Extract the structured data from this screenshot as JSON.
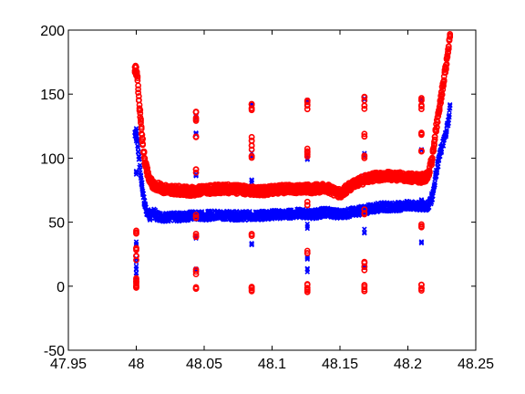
{
  "chart_data": {
    "type": "scatter",
    "title": "",
    "xlabel": "",
    "ylabel": "",
    "xlim": [
      47.95,
      48.25
    ],
    "ylim": [
      -50,
      200
    ],
    "xticks": [
      "47.95",
      "48",
      "48.05",
      "48.1",
      "48.15",
      "48.2",
      "48.25"
    ],
    "yticks": [
      "-50",
      "0",
      "50",
      "100",
      "150",
      "200"
    ],
    "grid": false,
    "legend": "none",
    "series": [
      {
        "color": "#0000ff",
        "marker": "x",
        "curve": [
          [
            47.999,
            120
          ],
          [
            48.0,
            118
          ],
          [
            48.001,
            112
          ],
          [
            48.002,
            100
          ],
          [
            48.004,
            80
          ],
          [
            48.006,
            65
          ],
          [
            48.008,
            58
          ],
          [
            48.01,
            54
          ],
          [
            48.012,
            58
          ],
          [
            48.015,
            55
          ],
          [
            48.02,
            54
          ],
          [
            48.03,
            54
          ],
          [
            48.04,
            55
          ],
          [
            48.05,
            55
          ],
          [
            48.06,
            56
          ],
          [
            48.07,
            55
          ],
          [
            48.08,
            55
          ],
          [
            48.09,
            55
          ],
          [
            48.1,
            56
          ],
          [
            48.11,
            56
          ],
          [
            48.12,
            57
          ],
          [
            48.13,
            56
          ],
          [
            48.14,
            58
          ],
          [
            48.15,
            56
          ],
          [
            48.16,
            58
          ],
          [
            48.17,
            60
          ],
          [
            48.18,
            62
          ],
          [
            48.19,
            62
          ],
          [
            48.2,
            63
          ],
          [
            48.21,
            62
          ],
          [
            48.215,
            63
          ],
          [
            48.218,
            70
          ],
          [
            48.221,
            90
          ],
          [
            48.224,
            105
          ],
          [
            48.227,
            115
          ],
          [
            48.23,
            130
          ],
          [
            48.231,
            140
          ]
        ],
        "columns": [
          {
            "x": 48.0,
            "y": [
              122,
              115,
              88,
              33,
              20,
              15,
              10,
              5
            ]
          },
          {
            "x": 48.044,
            "y": [
              133,
              118,
              88,
              55,
              38,
              12
            ]
          },
          {
            "x": 48.085,
            "y": [
              142,
              103,
              83,
              32
            ]
          },
          {
            "x": 48.126,
            "y": [
              145,
              100,
              47,
              22,
              12
            ]
          },
          {
            "x": 48.168,
            "y": [
              145,
              102,
              85,
              43,
              15
            ]
          },
          {
            "x": 48.21,
            "y": [
              145,
              105,
              68,
              35
            ]
          }
        ]
      },
      {
        "color": "#ff0000",
        "marker": "o",
        "curve": [
          [
            47.999,
            170
          ],
          [
            48.0,
            168
          ],
          [
            48.001,
            160
          ],
          [
            48.002,
            145
          ],
          [
            48.004,
            120
          ],
          [
            48.006,
            100
          ],
          [
            48.008,
            90
          ],
          [
            48.01,
            82
          ],
          [
            48.012,
            80
          ],
          [
            48.015,
            78
          ],
          [
            48.02,
            76
          ],
          [
            48.03,
            75
          ],
          [
            48.04,
            74
          ],
          [
            48.05,
            75
          ],
          [
            48.06,
            76
          ],
          [
            48.07,
            76
          ],
          [
            48.08,
            75
          ],
          [
            48.09,
            74
          ],
          [
            48.1,
            75
          ],
          [
            48.11,
            76
          ],
          [
            48.12,
            76
          ],
          [
            48.13,
            76
          ],
          [
            48.14,
            77
          ],
          [
            48.15,
            72
          ],
          [
            48.16,
            80
          ],
          [
            48.17,
            84
          ],
          [
            48.18,
            86
          ],
          [
            48.19,
            86
          ],
          [
            48.2,
            85
          ],
          [
            48.21,
            84
          ],
          [
            48.215,
            86
          ],
          [
            48.218,
            100
          ],
          [
            48.221,
            125
          ],
          [
            48.224,
            145
          ],
          [
            48.227,
            165
          ],
          [
            48.23,
            185
          ],
          [
            48.231,
            198
          ]
        ],
        "columns": [
          {
            "x": 48.0,
            "y": [
              42,
              28,
              22,
              5,
              2,
              0
            ]
          },
          {
            "x": 48.044,
            "y": [
              135,
              130,
              118,
              90,
              55,
              40,
              11,
              -2
            ]
          },
          {
            "x": 48.085,
            "y": [
              143,
              138,
              115,
              108,
              102,
              40,
              0,
              -3
            ]
          },
          {
            "x": 48.126,
            "y": [
              145,
              140,
              107,
              103,
              64,
              27,
              0,
              -3
            ]
          },
          {
            "x": 48.168,
            "y": [
              147,
              140,
              118,
              100,
              58,
              20,
              14,
              0,
              -2
            ]
          },
          {
            "x": 48.21,
            "y": [
              146,
              140,
              118,
              105,
              47,
              0,
              -3
            ]
          }
        ]
      }
    ]
  }
}
